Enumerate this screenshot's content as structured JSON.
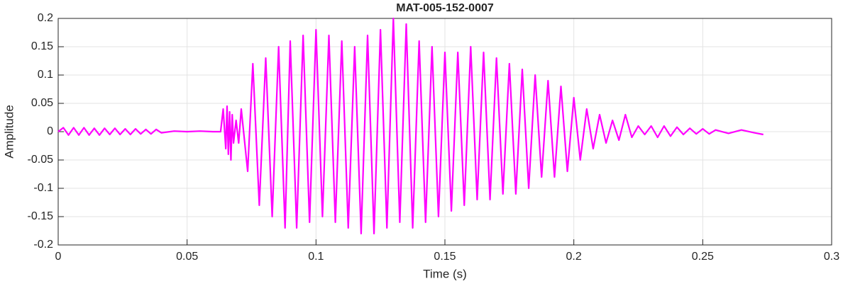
{
  "chart_data": {
    "type": "line",
    "title": "MAT-005-152-0007",
    "x_label": "Time (s)",
    "y_label": "Amplitude",
    "xlim": [
      0,
      0.3
    ],
    "ylim": [
      -0.2,
      0.2
    ],
    "xticks": [
      0,
      0.05,
      0.1,
      0.15,
      0.2,
      0.25,
      0.3
    ],
    "yticks": [
      -0.2,
      -0.15,
      -0.1,
      -0.05,
      0,
      0.05,
      0.1,
      0.15,
      0.2
    ],
    "grid": true,
    "color": "#ff00ff",
    "x": [
      0,
      0.002,
      0.004,
      0.006,
      0.008,
      0.01,
      0.012,
      0.014,
      0.016,
      0.018,
      0.02,
      0.022,
      0.024,
      0.026,
      0.028,
      0.03,
      0.032,
      0.034,
      0.036,
      0.038,
      0.04,
      0.045,
      0.05,
      0.055,
      0.06,
      0.063,
      0.064,
      0.065,
      0.0655,
      0.066,
      0.0665,
      0.067,
      0.0675,
      0.068,
      0.069,
      0.07,
      0.071,
      0.0735,
      0.0755,
      0.078,
      0.0805,
      0.083,
      0.0855,
      0.088,
      0.09,
      0.0925,
      0.095,
      0.0975,
      0.1,
      0.1025,
      0.105,
      0.1075,
      0.11,
      0.1125,
      0.115,
      0.1175,
      0.12,
      0.1225,
      0.125,
      0.1275,
      0.13,
      0.1325,
      0.135,
      0.1375,
      0.14,
      0.1425,
      0.145,
      0.1475,
      0.15,
      0.1525,
      0.155,
      0.1575,
      0.16,
      0.1625,
      0.165,
      0.1675,
      0.17,
      0.1725,
      0.175,
      0.1775,
      0.18,
      0.1825,
      0.185,
      0.1875,
      0.19,
      0.1925,
      0.195,
      0.1975,
      0.2,
      0.2025,
      0.205,
      0.2075,
      0.21,
      0.2125,
      0.215,
      0.2175,
      0.22,
      0.2225,
      0.225,
      0.2275,
      0.23,
      0.2325,
      0.235,
      0.2375,
      0.24,
      0.2425,
      0.245,
      0.2475,
      0.25,
      0.2525,
      0.255,
      0.26,
      0.265,
      0.27,
      0.2735
    ],
    "values": [
      0,
      0.007,
      -0.006,
      0.007,
      -0.006,
      0.007,
      -0.006,
      0.006,
      -0.006,
      0.006,
      -0.005,
      0.006,
      -0.005,
      0.005,
      -0.005,
      0.005,
      -0.004,
      0.004,
      -0.004,
      0.004,
      -0.002,
      0.001,
      0,
      0.001,
      0,
      0,
      0.04,
      -0.03,
      0.045,
      -0.04,
      0.035,
      -0.05,
      0.03,
      -0.02,
      0.02,
      -0.02,
      0.04,
      -0.07,
      0.12,
      -0.13,
      0.13,
      -0.15,
      0.15,
      -0.17,
      0.16,
      -0.17,
      0.17,
      -0.16,
      0.18,
      -0.15,
      0.17,
      -0.16,
      0.16,
      -0.17,
      0.15,
      -0.18,
      0.17,
      -0.18,
      0.18,
      -0.17,
      0.2,
      -0.16,
      0.19,
      -0.17,
      0.16,
      -0.16,
      0.15,
      -0.15,
      0.14,
      -0.14,
      0.14,
      -0.13,
      0.15,
      -0.12,
      0.14,
      -0.12,
      0.13,
      -0.11,
      0.12,
      -0.11,
      0.11,
      -0.1,
      0.1,
      -0.08,
      0.09,
      -0.08,
      0.08,
      -0.07,
      0.06,
      -0.05,
      0.04,
      -0.03,
      0.03,
      -0.02,
      0.02,
      -0.015,
      0.03,
      -0.01,
      0.01,
      -0.005,
      0.01,
      -0.01,
      0.01,
      -0.008,
      0.008,
      -0.005,
      0.006,
      -0.004,
      0.005,
      -0.004,
      0.003,
      -0.003,
      0.003,
      -0.002,
      -0.005
    ]
  }
}
